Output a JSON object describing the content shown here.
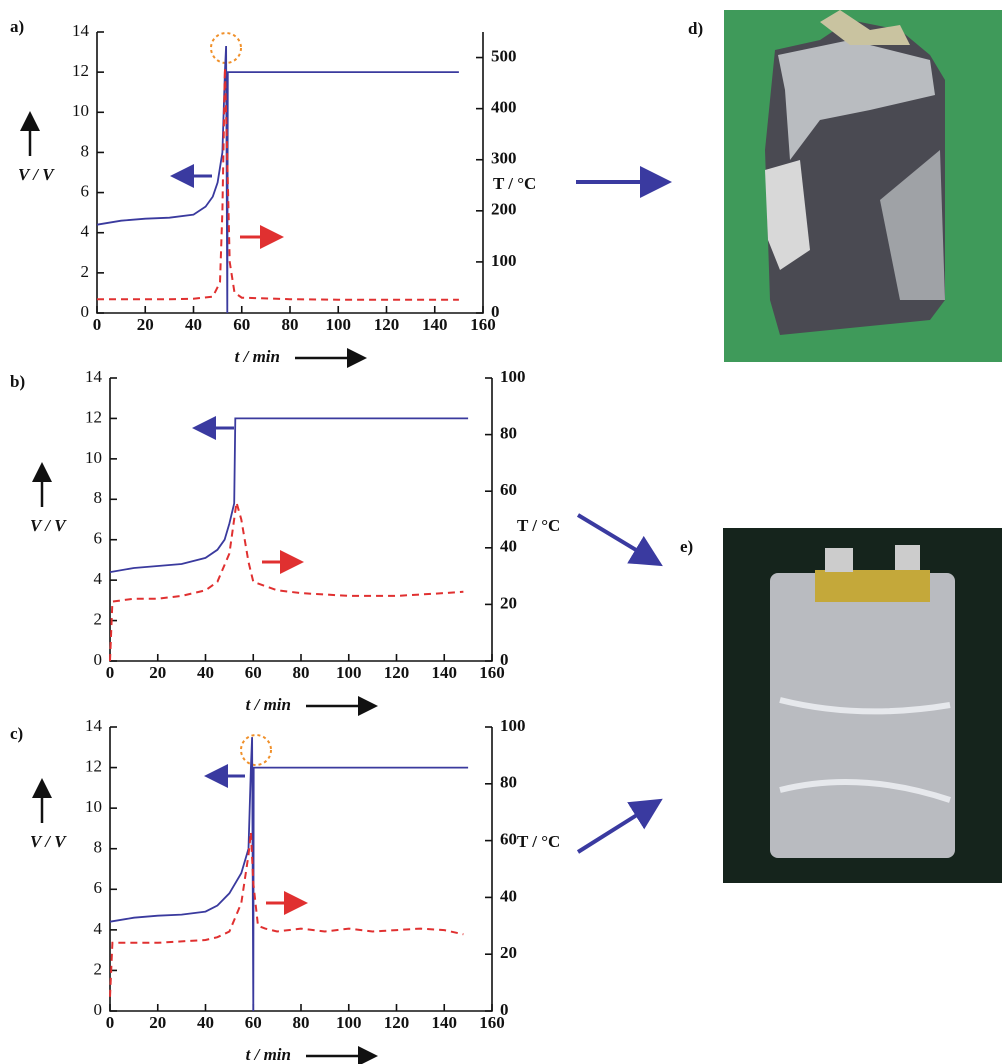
{
  "chart_data": [
    {
      "type": "line",
      "panel": "a)",
      "xlabel": "t / min",
      "ylabel": "V / V",
      "y2label": "T / °C",
      "xlim": [
        0,
        160
      ],
      "xticks": [
        0,
        20,
        40,
        60,
        80,
        100,
        120,
        140,
        160
      ],
      "ylim": [
        0,
        14
      ],
      "yticks": [
        0,
        2,
        4,
        6,
        8,
        10,
        12,
        14
      ],
      "y2lim": [
        0,
        550
      ],
      "y2ticks": [
        0,
        100,
        200,
        300,
        400,
        500
      ],
      "series": [
        {
          "color": "#3a3a9e",
          "linestyle": "solid",
          "x": [
            0,
            10,
            20,
            30,
            40,
            45,
            48,
            50,
            52,
            53,
            53.5,
            54,
            54.2,
            150
          ],
          "values": [
            4.4,
            4.6,
            4.7,
            4.75,
            4.9,
            5.3,
            5.8,
            6.5,
            8,
            12,
            13.3,
            0,
            12,
            12
          ]
        },
        {
          "color": "#e03030",
          "linestyle": "dashed",
          "axis": "y2",
          "x": [
            0,
            10,
            20,
            30,
            40,
            48,
            51,
            52,
            53,
            54,
            55,
            57,
            60,
            80,
            100,
            120,
            150
          ],
          "values": [
            27,
            27,
            27,
            27,
            28,
            32,
            60,
            200,
            480,
            300,
            100,
            40,
            30,
            27,
            26,
            26,
            26
          ]
        }
      ]
    },
    {
      "type": "line",
      "panel": "b)",
      "xlabel": "t / min",
      "ylabel": "V / V",
      "y2label": "T / °C",
      "xlim": [
        0,
        160
      ],
      "xticks": [
        0,
        20,
        40,
        60,
        80,
        100,
        120,
        140,
        160
      ],
      "ylim": [
        0,
        14
      ],
      "yticks": [
        0,
        2,
        4,
        6,
        8,
        10,
        12,
        14
      ],
      "y2lim": [
        0,
        100
      ],
      "y2ticks": [
        0,
        20,
        40,
        60,
        80,
        100
      ],
      "series": [
        {
          "color": "#3a3a9e",
          "linestyle": "solid",
          "x": [
            0,
            10,
            20,
            30,
            40,
            45,
            48,
            50,
            52,
            52.5,
            150
          ],
          "values": [
            4.4,
            4.6,
            4.7,
            4.8,
            5.1,
            5.5,
            6,
            6.8,
            7.8,
            12,
            12
          ]
        },
        {
          "color": "#e03030",
          "linestyle": "dashed",
          "axis": "y2",
          "x": [
            0,
            1,
            10,
            20,
            30,
            40,
            45,
            50,
            53,
            55,
            58,
            60,
            70,
            80,
            100,
            120,
            140,
            148
          ],
          "values": [
            0,
            21,
            22,
            22,
            23,
            25,
            28,
            38,
            56,
            50,
            35,
            28,
            25,
            24,
            23,
            23,
            24,
            24.5
          ]
        }
      ]
    },
    {
      "type": "line",
      "panel": "c)",
      "xlabel": "t / min",
      "ylabel": "V / V",
      "y2label": "T / °C",
      "xlim": [
        0,
        160
      ],
      "xticks": [
        0,
        20,
        40,
        60,
        80,
        100,
        120,
        140,
        160
      ],
      "ylim": [
        0,
        14
      ],
      "yticks": [
        0,
        2,
        4,
        6,
        8,
        10,
        12,
        14
      ],
      "y2lim": [
        0,
        100
      ],
      "y2ticks": [
        0,
        20,
        40,
        60,
        80,
        100
      ],
      "series": [
        {
          "color": "#3a3a9e",
          "linestyle": "solid",
          "x": [
            0,
            10,
            20,
            30,
            40,
            45,
            50,
            55,
            58,
            59,
            59.5,
            60,
            60.2,
            150
          ],
          "values": [
            4.4,
            4.6,
            4.7,
            4.75,
            4.9,
            5.2,
            5.8,
            6.8,
            8,
            12,
            13.5,
            0,
            12,
            12
          ]
        },
        {
          "color": "#e03030",
          "linestyle": "dashed",
          "axis": "y2",
          "x": [
            0,
            1,
            10,
            20,
            30,
            40,
            45,
            50,
            55,
            58,
            59,
            60,
            62,
            65,
            70,
            80,
            90,
            100,
            110,
            120,
            130,
            140,
            148
          ],
          "values": [
            5,
            24,
            24,
            24,
            24.5,
            25,
            26,
            28,
            38,
            55,
            63,
            45,
            30,
            29,
            28,
            29,
            28,
            29,
            28,
            28.5,
            29,
            28.5,
            27
          ]
        }
      ]
    }
  ],
  "photo_labels": [
    "d)",
    "e)"
  ]
}
